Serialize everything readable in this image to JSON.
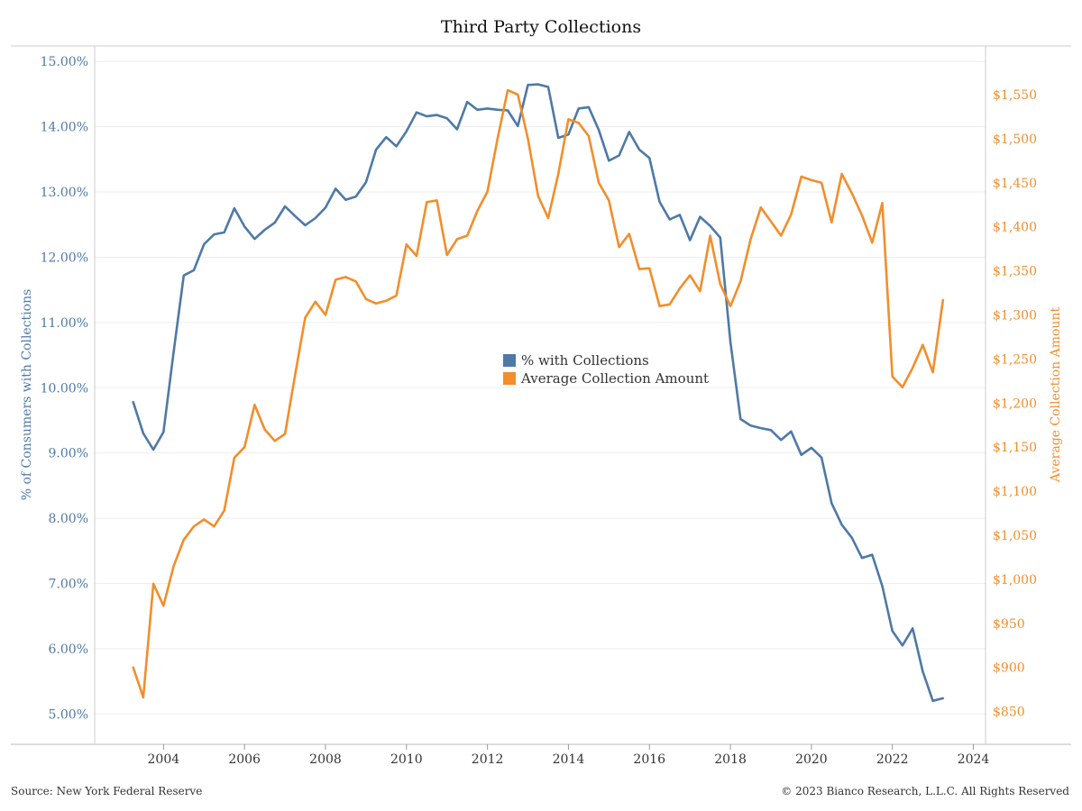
{
  "chart_data": {
    "type": "line",
    "title": "Third Party Collections",
    "ylabel_left": "% of Consumers with Collections",
    "ylabel_right": "Average Collection Amount",
    "x_ticks": [
      "2004",
      "2006",
      "2008",
      "2010",
      "2012",
      "2014",
      "2016",
      "2018",
      "2020",
      "2022",
      "2024"
    ],
    "xlim": [
      2002.3,
      2024.3
    ],
    "y_left_ticks": [
      "5.00%",
      "6.00%",
      "7.00%",
      "8.00%",
      "9.00%",
      "10.00%",
      "11.00%",
      "12.00%",
      "13.00%",
      "14.00%",
      "15.00%"
    ],
    "ylim_left": [
      4.7,
      15.1
    ],
    "y_right_ticks": [
      "$850",
      "$900",
      "$950",
      "$1,000",
      "$1,050",
      "$1,100",
      "$1,150",
      "$1,200",
      "$1,250",
      "$1,300",
      "$1,350",
      "$1,400",
      "$1,450",
      "$1,500",
      "$1,550"
    ],
    "ylim_right": [
      825,
      1595
    ],
    "grid": "horizontal",
    "legend": {
      "position": "center",
      "entries": [
        "% with Collections",
        "Average Collection Amount"
      ]
    },
    "colors": {
      "pct": "#4e79a7",
      "amount": "#f28e2b"
    },
    "series": [
      {
        "name": "% with Collections",
        "axis": "left",
        "x": [
          2003.25,
          2003.5,
          2003.75,
          2004.0,
          2004.25,
          2004.5,
          2004.75,
          2005.0,
          2005.25,
          2005.5,
          2005.75,
          2006.0,
          2006.25,
          2006.5,
          2006.75,
          2007.0,
          2007.25,
          2007.5,
          2007.75,
          2008.0,
          2008.25,
          2008.5,
          2008.75,
          2009.0,
          2009.25,
          2009.5,
          2009.75,
          2010.0,
          2010.25,
          2010.5,
          2010.75,
          2011.0,
          2011.25,
          2011.5,
          2011.75,
          2012.0,
          2012.25,
          2012.5,
          2012.75,
          2013.0,
          2013.25,
          2013.5,
          2013.75,
          2014.0,
          2014.25,
          2014.5,
          2014.75,
          2015.0,
          2015.25,
          2015.5,
          2015.75,
          2016.0,
          2016.25,
          2016.5,
          2016.75,
          2017.0,
          2017.25,
          2017.5,
          2017.75,
          2018.0,
          2018.25,
          2018.5,
          2018.75,
          2019.0,
          2019.25,
          2019.5,
          2019.75,
          2020.0,
          2020.25,
          2020.5,
          2020.75,
          2021.0,
          2021.25,
          2021.5,
          2021.75,
          2022.0,
          2022.25,
          2022.5,
          2022.75,
          2023.0,
          2023.25
        ],
        "y": [
          9.78,
          9.3,
          9.05,
          9.32,
          10.55,
          11.72,
          11.8,
          12.2,
          12.35,
          12.38,
          12.75,
          12.47,
          12.28,
          12.42,
          12.53,
          12.78,
          12.63,
          12.49,
          12.6,
          12.76,
          13.05,
          12.88,
          12.93,
          13.15,
          13.65,
          13.84,
          13.7,
          13.93,
          14.22,
          14.16,
          14.18,
          14.13,
          13.96,
          14.38,
          14.26,
          14.28,
          14.26,
          14.25,
          14.01,
          14.64,
          14.65,
          14.61,
          13.83,
          13.88,
          14.28,
          14.3,
          13.95,
          13.48,
          13.56,
          13.92,
          13.65,
          13.52,
          12.85,
          12.58,
          12.65,
          12.26,
          12.62,
          12.48,
          12.3,
          10.7,
          9.52,
          9.42,
          9.38,
          9.35,
          9.2,
          9.33,
          8.97,
          9.08,
          8.93,
          8.23,
          7.9,
          7.7,
          7.39,
          7.44,
          6.96,
          6.27,
          6.05,
          6.31,
          5.65,
          5.2,
          5.24
        ]
      },
      {
        "name": "Average Collection Amount",
        "axis": "right",
        "x": [
          2003.25,
          2003.5,
          2003.75,
          2004.0,
          2004.25,
          2004.5,
          2004.75,
          2005.0,
          2005.25,
          2005.5,
          2005.75,
          2006.0,
          2006.25,
          2006.5,
          2006.75,
          2007.0,
          2007.25,
          2007.5,
          2007.75,
          2008.0,
          2008.25,
          2008.5,
          2008.75,
          2009.0,
          2009.25,
          2009.5,
          2009.75,
          2010.0,
          2010.25,
          2010.5,
          2010.75,
          2011.0,
          2011.25,
          2011.5,
          2011.75,
          2012.0,
          2012.25,
          2012.5,
          2012.75,
          2013.0,
          2013.25,
          2013.5,
          2013.75,
          2014.0,
          2014.25,
          2014.5,
          2014.75,
          2015.0,
          2015.25,
          2015.5,
          2015.75,
          2016.0,
          2016.25,
          2016.5,
          2016.75,
          2017.0,
          2017.25,
          2017.5,
          2017.75,
          2018.0,
          2018.25,
          2018.5,
          2018.75,
          2019.0,
          2019.25,
          2019.5,
          2019.75,
          2020.0,
          2020.25,
          2020.5,
          2020.75,
          2021.0,
          2021.25,
          2021.5,
          2021.75,
          2022.0,
          2022.25,
          2022.5,
          2022.75,
          2023.0,
          2023.25
        ],
        "y": [
          900,
          866,
          995,
          970,
          1015,
          1045,
          1060,
          1068,
          1060,
          1078,
          1138,
          1150,
          1198,
          1170,
          1157,
          1165,
          1232,
          1297,
          1315,
          1300,
          1340,
          1343,
          1338,
          1318,
          1313,
          1316,
          1322,
          1380,
          1367,
          1428,
          1430,
          1368,
          1386,
          1390,
          1418,
          1440,
          1500,
          1555,
          1550,
          1500,
          1435,
          1410,
          1460,
          1522,
          1518,
          1503,
          1450,
          1430,
          1377,
          1392,
          1352,
          1353,
          1310,
          1312,
          1330,
          1345,
          1327,
          1390,
          1335,
          1310,
          1338,
          1386,
          1422,
          1406,
          1390,
          1414,
          1457,
          1453,
          1450,
          1405,
          1460,
          1438,
          1413,
          1382,
          1427,
          1230,
          1218,
          1240,
          1266,
          1235,
          1317
        ]
      }
    ]
  },
  "footer": {
    "source": "Source: New York Federal Reserve",
    "copyright": "© 2023 Bianco Research, L.L.C. All Rights Reserved"
  }
}
